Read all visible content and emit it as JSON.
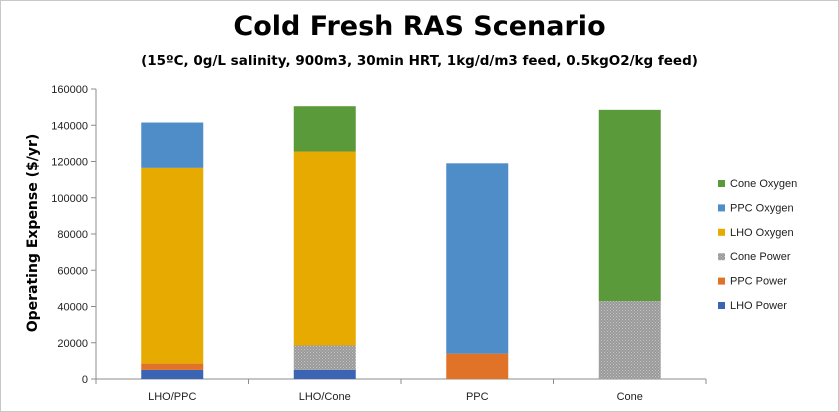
{
  "chart_data": {
    "type": "bar",
    "stacked": true,
    "title": "Cold Fresh RAS Scenario",
    "subtitle": "(15ºC, 0g/L salinity, 900m3, 30min HRT, 1kg/d/m3 feed, 0.5kgO2/kg feed)",
    "xlabel": "",
    "ylabel": "Operating Expense ($/yr)",
    "ylim": [
      0,
      160000
    ],
    "yticks": [
      0,
      20000,
      40000,
      60000,
      80000,
      100000,
      120000,
      140000,
      160000
    ],
    "grid": false,
    "legend_position": "right",
    "categories": [
      "LHO/PPC",
      "LHO/Cone",
      "PPC",
      "Cone"
    ],
    "series": [
      {
        "name": "LHO Power",
        "color": "#3c64b4",
        "values": [
          5000,
          5000,
          0,
          0
        ]
      },
      {
        "name": "PPC Power",
        "color": "#e07328",
        "values": [
          3500,
          0,
          14000,
          0
        ]
      },
      {
        "name": "Cone Power",
        "color": "#a0a0a0",
        "pattern": true,
        "values": [
          0,
          13500,
          0,
          43000
        ]
      },
      {
        "name": "LHO Oxygen",
        "color": "#e6aa00",
        "values": [
          108000,
          107000,
          0,
          0
        ]
      },
      {
        "name": "PPC Oxygen",
        "color": "#4f8dc9",
        "values": [
          25000,
          0,
          105000,
          0
        ]
      },
      {
        "name": "Cone Oxygen",
        "color": "#5b9a3a",
        "values": [
          0,
          25000,
          0,
          105500
        ]
      }
    ]
  }
}
